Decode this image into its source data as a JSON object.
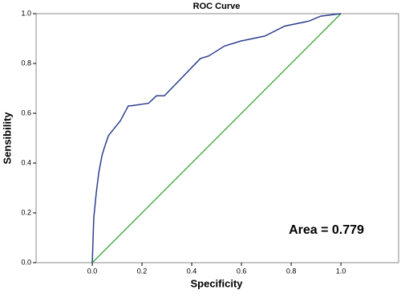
{
  "chart_data": {
    "type": "line",
    "title": "ROC Curve",
    "x_label": "Specificity",
    "y_label": "Sensibility",
    "annotation": "Area = 0.779",
    "x": [
      0,
      0.006,
      0.016,
      0.026,
      0.039,
      0.048,
      0.065,
      0.081,
      0.113,
      0.145,
      0.155,
      0.226,
      0.258,
      0.29,
      0.435,
      0.468,
      0.532,
      0.597,
      0.694,
      0.774,
      0.871,
      0.919,
      1
    ],
    "series": [
      {
        "color": "#2e3f8f",
        "values": [
          0,
          0.18,
          0.28,
          0.36,
          0.43,
          0.46,
          0.51,
          0.53,
          0.57,
          0.63,
          0.63,
          0.64,
          0.67,
          0.67,
          0.82,
          0.83,
          0.87,
          0.89,
          0.91,
          0.95,
          0.97,
          0.99,
          1
        ]
      }
    ],
    "reference_line": {
      "x": [
        0,
        1
      ],
      "y": [
        0,
        1
      ],
      "color": "#3aa935"
    },
    "xlim": [
      -0.226,
      1.232
    ],
    "ylim": [
      0,
      1
    ],
    "xticks": [
      {
        "value": 0,
        "label": "0.0"
      },
      {
        "value": 0.2,
        "label": "0.2"
      },
      {
        "value": 0.4,
        "label": "0.4"
      },
      {
        "value": 0.6,
        "label": "0.6"
      },
      {
        "value": 0.8,
        "label": "0.8"
      },
      {
        "value": 1,
        "label": "1.0"
      }
    ],
    "yticks": [
      {
        "value": 0,
        "label": "0.0"
      },
      {
        "value": 0.2,
        "label": "0.2"
      },
      {
        "value": 0.4,
        "label": "0.4"
      },
      {
        "value": 0.6,
        "label": "0.6"
      },
      {
        "value": 0.8,
        "label": "0.8"
      },
      {
        "value": 1,
        "label": "1.0"
      }
    ]
  }
}
